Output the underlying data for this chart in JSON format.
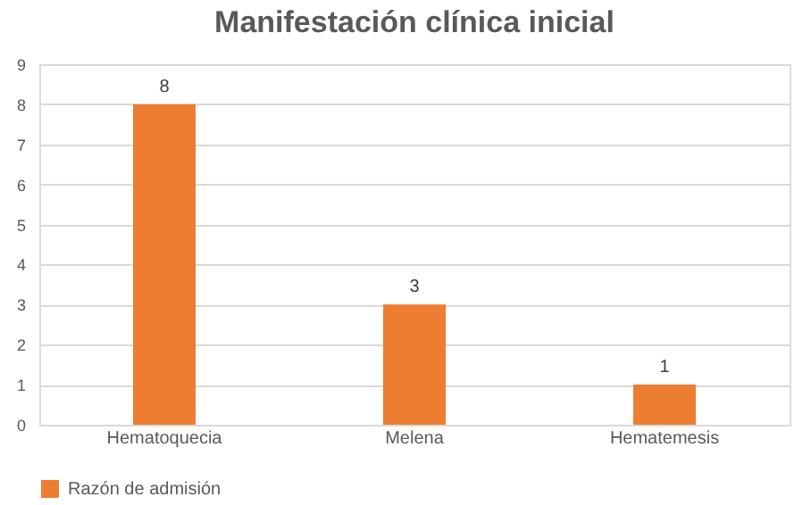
{
  "chart_data": {
    "type": "bar",
    "title": "Manifestación clínica inicial",
    "categories": [
      "Hematoquecia",
      "Melena",
      "Hematemesis"
    ],
    "series": [
      {
        "name": "Razón de admisión",
        "color": "#ed7d31",
        "values": [
          8,
          3,
          1
        ]
      }
    ],
    "ylim": [
      0,
      9
    ],
    "yticks": [
      0,
      1,
      2,
      3,
      4,
      5,
      6,
      7,
      8,
      9
    ],
    "grid": "y",
    "legend": "bottom",
    "data_labels": true
  }
}
